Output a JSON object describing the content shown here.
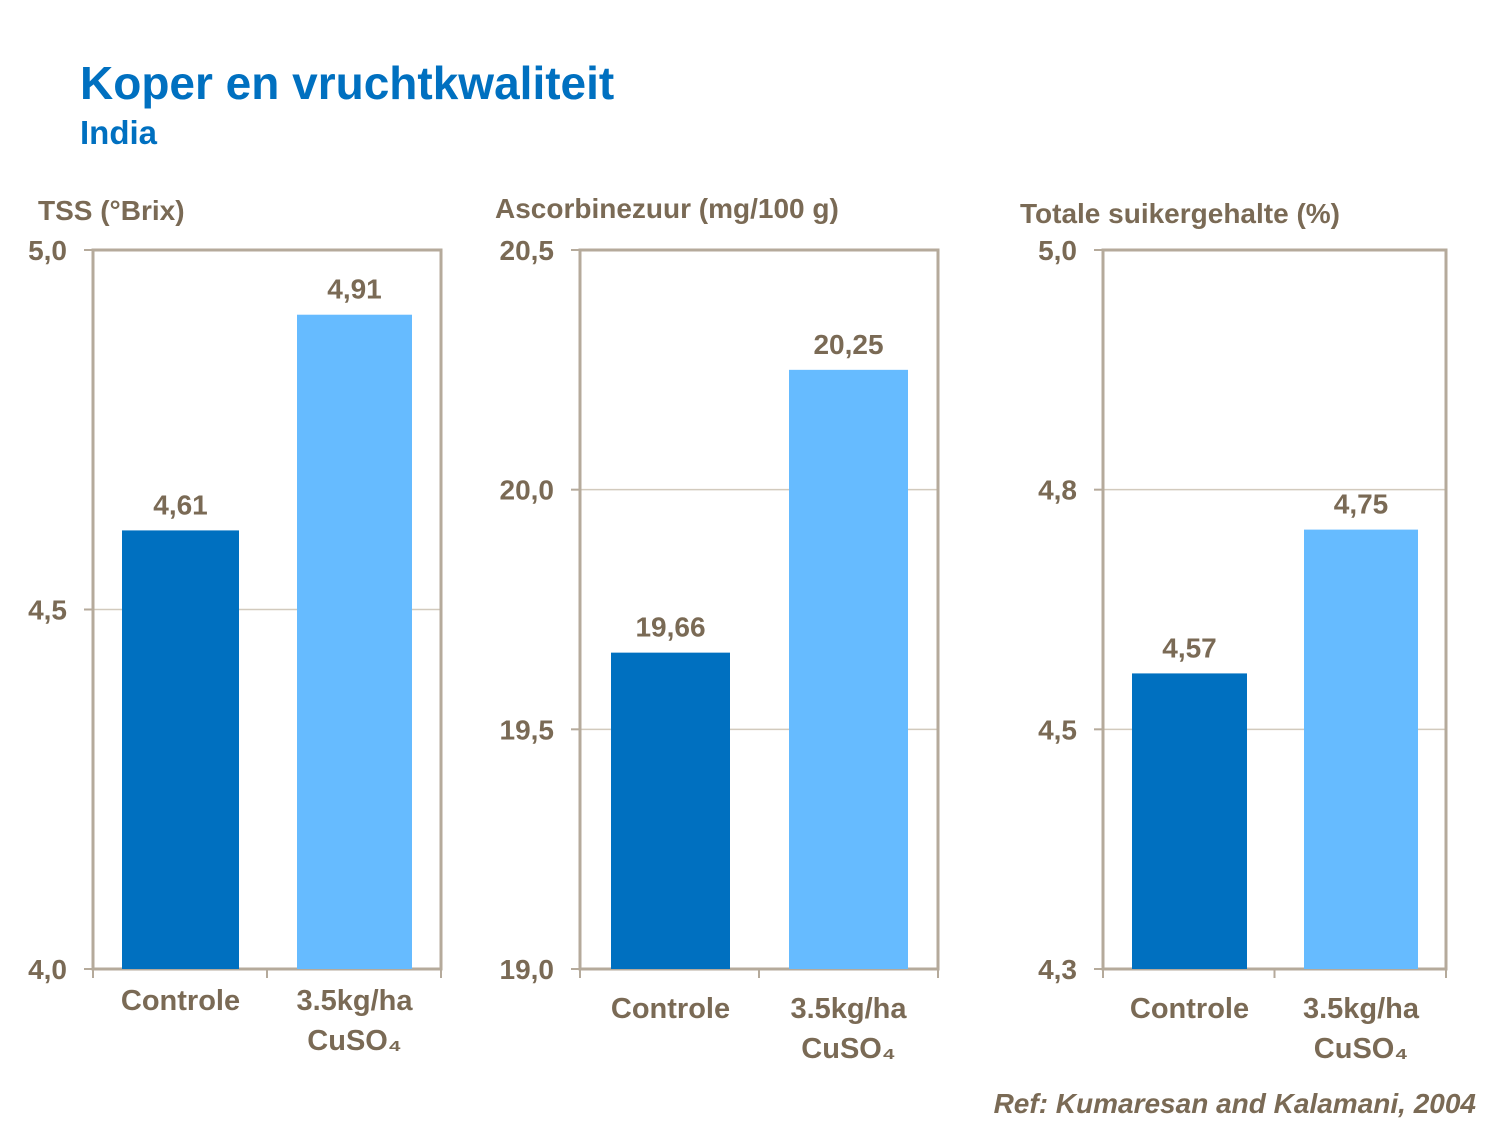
{
  "title": "Koper en vruchtkwaliteit",
  "subtitle": "India",
  "reference": "Ref: Kumaresan and Kalamani, 2004",
  "colors": {
    "text": "#7a6a55",
    "title": "#0070c0",
    "series": [
      "#0070c0",
      "#66bbff"
    ],
    "axis": "#b5aa9b"
  },
  "chart_data": [
    {
      "type": "bar",
      "title": "TSS (°Brix)",
      "categories": [
        "Controle",
        "3.5kg/ha CuSO₄"
      ],
      "values": [
        4.61,
        4.91
      ],
      "value_labels": [
        "4,61",
        "4,91"
      ],
      "yticks": [
        4.0,
        4.5,
        5.0
      ],
      "ytick_labels": [
        "4,0",
        "4,5",
        "5,0"
      ],
      "ylim": [
        4.0,
        5.0
      ],
      "grid": true
    },
    {
      "type": "bar",
      "title": "Ascorbinezuur (mg/100 g)",
      "categories": [
        "Controle",
        "3.5kg/ha CuSO₄"
      ],
      "values": [
        19.66,
        20.25
      ],
      "value_labels": [
        "19,66",
        "20,25"
      ],
      "yticks": [
        19.0,
        19.5,
        20.0,
        20.5
      ],
      "ytick_labels": [
        "19,0",
        "19,5",
        "20,0",
        "20,5"
      ],
      "ylim": [
        19.0,
        20.5
      ],
      "grid": true
    },
    {
      "type": "bar",
      "title": "Totale suikergehalte (%)",
      "categories": [
        "Controle",
        "3.5kg/ha CuSO₄"
      ],
      "values": [
        4.57,
        4.75
      ],
      "value_labels": [
        "4,57",
        "4,75"
      ],
      "yticks": [
        4.3,
        4.5,
        4.8,
        5.0
      ],
      "ytick_labels": [
        "4,3",
        "4,5",
        "4,8",
        "5,0"
      ],
      "ylim": [
        4.3,
        5.0
      ],
      "grid": true
    }
  ]
}
